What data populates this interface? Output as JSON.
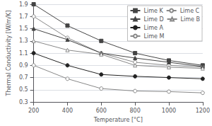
{
  "chart_data": {
    "type": "line",
    "xlabel": "Temperature [°C]",
    "ylabel": "Thermal Conductivity [W/m/K]",
    "x": [
      200,
      400,
      600,
      800,
      1000,
      1200
    ],
    "xlim": [
      200,
      1200
    ],
    "xticks": [
      200,
      400,
      600,
      800,
      1000,
      1200
    ],
    "ylim": [
      0.3,
      1.9
    ],
    "yticks": [
      0.3,
      0.5,
      0.7,
      0.9,
      1.1,
      1.3,
      1.5,
      1.7,
      1.9
    ],
    "grid": true,
    "legend": "upper right",
    "series": [
      {
        "name": "Lime K",
        "color": "#444444",
        "marker": "square",
        "values": [
          1.9,
          1.55,
          1.3,
          1.1,
          0.98,
          0.9
        ]
      },
      {
        "name": "Lime C",
        "color": "#888888",
        "marker": "circle-open",
        "values": [
          1.7,
          1.35,
          1.1,
          0.95,
          0.9,
          0.87
        ]
      },
      {
        "name": "Lime D",
        "color": "#444444",
        "marker": "triangle",
        "values": [
          1.5,
          1.32,
          1.1,
          1.02,
          0.95,
          0.88
        ]
      },
      {
        "name": "Lime B",
        "color": "#888888",
        "marker": "triangle-open",
        "values": [
          1.3,
          1.15,
          1.08,
          0.9,
          0.87,
          0.85
        ]
      },
      {
        "name": "Lime A",
        "color": "#222222",
        "marker": "circle",
        "values": [
          1.1,
          0.9,
          0.75,
          0.72,
          0.7,
          0.68
        ]
      },
      {
        "name": "Lime M",
        "color": "#888888",
        "marker": "circle-open",
        "values": [
          0.9,
          0.68,
          0.52,
          0.48,
          0.47,
          0.45
        ]
      }
    ]
  }
}
